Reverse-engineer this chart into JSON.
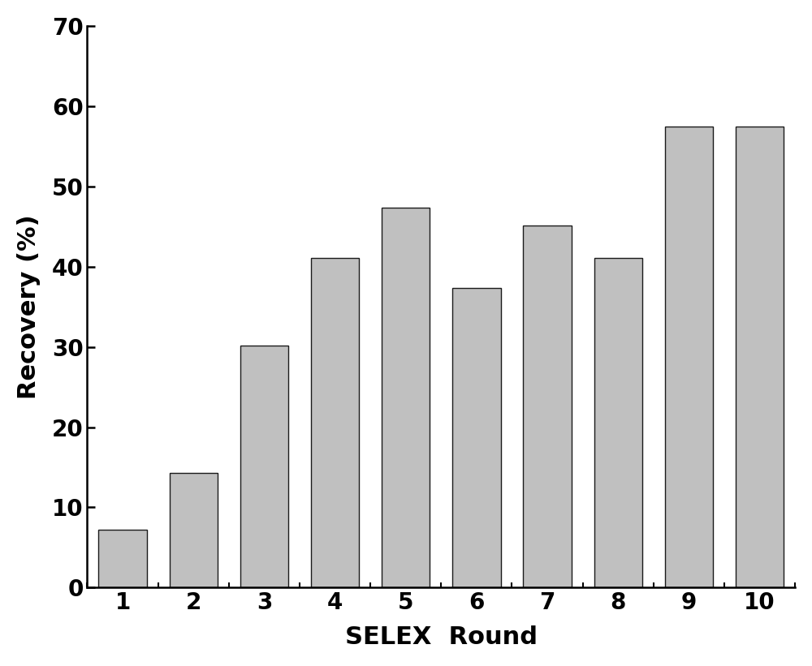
{
  "categories": [
    1,
    2,
    3,
    4,
    5,
    6,
    7,
    8,
    9,
    10
  ],
  "values": [
    7.2,
    14.3,
    30.2,
    41.1,
    47.3,
    37.3,
    45.1,
    41.1,
    57.5,
    57.5
  ],
  "bar_color": "#C0C0C0",
  "bar_edgecolor": "#1a1a1a",
  "bar_linewidth": 1.0,
  "xlabel": "SELEX  Round",
  "ylabel": "Recovery (%)",
  "xlim": [
    0.5,
    10.5
  ],
  "ylim": [
    0,
    70
  ],
  "yticks": [
    0,
    10,
    20,
    30,
    40,
    50,
    60,
    70
  ],
  "xticks": [
    1,
    2,
    3,
    4,
    5,
    6,
    7,
    8,
    9,
    10
  ],
  "xlabel_fontsize": 22,
  "ylabel_fontsize": 22,
  "tick_fontsize": 20,
  "bar_width": 0.68,
  "spine_linewidth": 1.8,
  "figure_width": 10.0,
  "figure_height": 8.21,
  "font_weight": "bold"
}
